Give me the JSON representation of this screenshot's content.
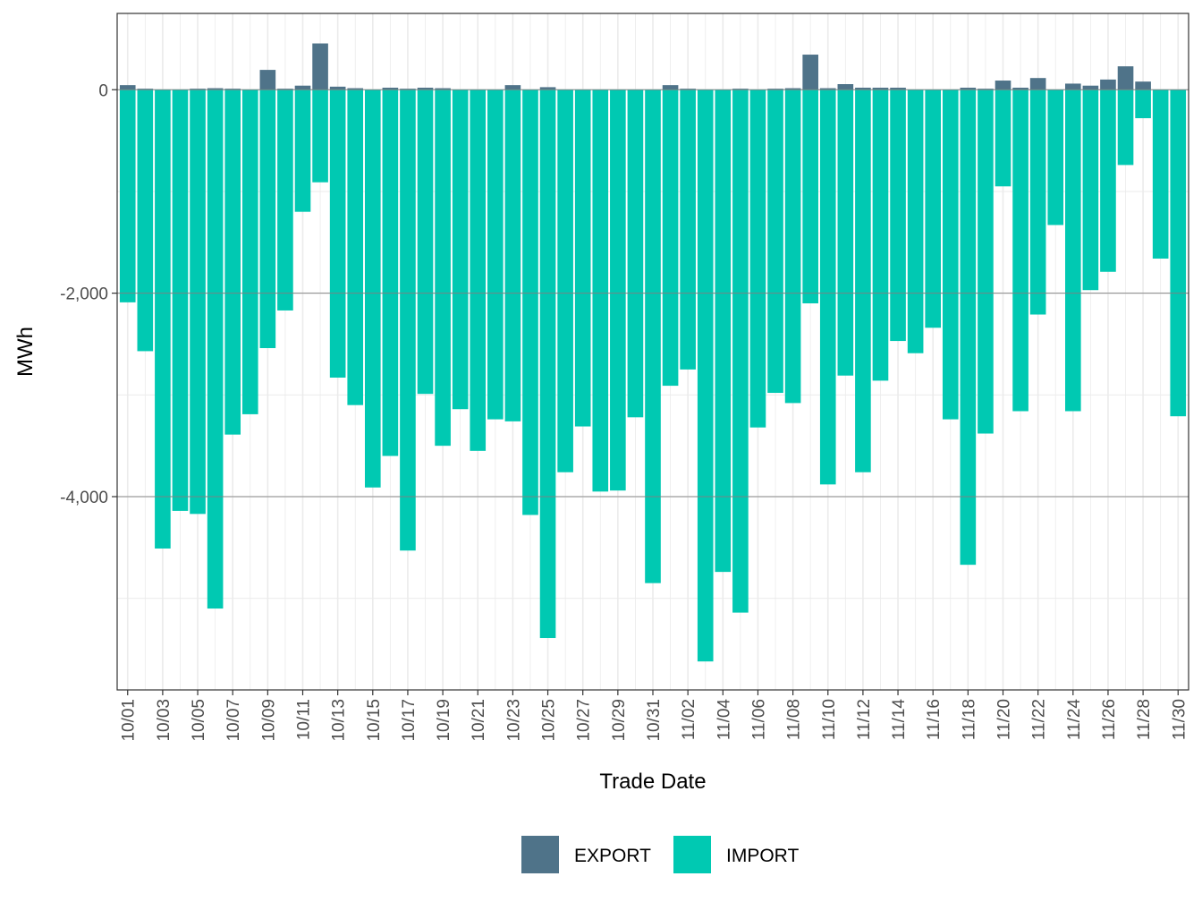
{
  "chart_data": {
    "type": "bar",
    "stacked": true,
    "xlabel": "Trade Date",
    "ylabel": "MWh",
    "ylim": [
      -5900,
      750
    ],
    "yticks": [
      0,
      -2000,
      -4000
    ],
    "ytick_labels": [
      "0",
      "-2,000",
      "-4,000"
    ],
    "grid": true,
    "legend_position": "bottom",
    "categories": [
      "10/01",
      "10/02",
      "10/03",
      "10/04",
      "10/05",
      "10/06",
      "10/07",
      "10/08",
      "10/09",
      "10/10",
      "10/11",
      "10/12",
      "10/13",
      "10/14",
      "10/15",
      "10/16",
      "10/17",
      "10/18",
      "10/19",
      "10/20",
      "10/21",
      "10/22",
      "10/23",
      "10/24",
      "10/25",
      "10/26",
      "10/27",
      "10/28",
      "10/29",
      "10/30",
      "10/31",
      "11/01",
      "11/02",
      "11/03",
      "11/04",
      "11/05",
      "11/06",
      "11/07",
      "11/08",
      "11/09",
      "11/10",
      "11/11",
      "11/12",
      "11/13",
      "11/14",
      "11/15",
      "11/16",
      "11/17",
      "11/18",
      "11/19",
      "11/20",
      "11/21",
      "11/22",
      "11/23",
      "11/24",
      "11/25",
      "11/26",
      "11/27",
      "11/28",
      "11/29",
      "11/30"
    ],
    "x_tick_labels": [
      "10/01",
      "10/03",
      "10/05",
      "10/07",
      "10/09",
      "10/11",
      "10/13",
      "10/15",
      "10/17",
      "10/19",
      "10/21",
      "10/23",
      "10/25",
      "10/27",
      "10/29",
      "10/31",
      "11/02",
      "11/04",
      "11/06",
      "11/08",
      "11/10",
      "11/12",
      "11/14",
      "11/16",
      "11/18",
      "11/20",
      "11/22",
      "11/24",
      "11/26",
      "11/28",
      "11/30"
    ],
    "series": [
      {
        "name": "EXPORT",
        "color": "#4f7389",
        "values": [
          45,
          10,
          0,
          0,
          10,
          15,
          10,
          0,
          195,
          10,
          40,
          455,
          30,
          15,
          0,
          20,
          10,
          20,
          15,
          0,
          0,
          0,
          45,
          0,
          25,
          0,
          0,
          0,
          0,
          0,
          0,
          45,
          10,
          0,
          0,
          10,
          0,
          10,
          15,
          345,
          15,
          55,
          20,
          20,
          20,
          0,
          0,
          0,
          20,
          10,
          90,
          20,
          115,
          0,
          60,
          40,
          100,
          230,
          80,
          0,
          0
        ]
      },
      {
        "name": "IMPORT",
        "color": "#00c9b2",
        "values": [
          -2090,
          -2570,
          -4510,
          -4140,
          -4170,
          -5100,
          -3390,
          -3190,
          -2540,
          -2170,
          -1200,
          -910,
          -2830,
          -3100,
          -3910,
          -3600,
          -4530,
          -2990,
          -3500,
          -3140,
          -3550,
          -3240,
          -3260,
          -4180,
          -5390,
          -3760,
          -3310,
          -3950,
          -3940,
          -3220,
          -4850,
          -2910,
          -2750,
          -5620,
          -4740,
          -5140,
          -3320,
          -2980,
          -3080,
          -2100,
          -3880,
          -2810,
          -3760,
          -2860,
          -2470,
          -2590,
          -2340,
          -3240,
          -4670,
          -3380,
          -950,
          -3160,
          -2210,
          -1330,
          -3160,
          -1970,
          -1790,
          -740,
          -280,
          -1660,
          -3210
        ]
      }
    ]
  }
}
